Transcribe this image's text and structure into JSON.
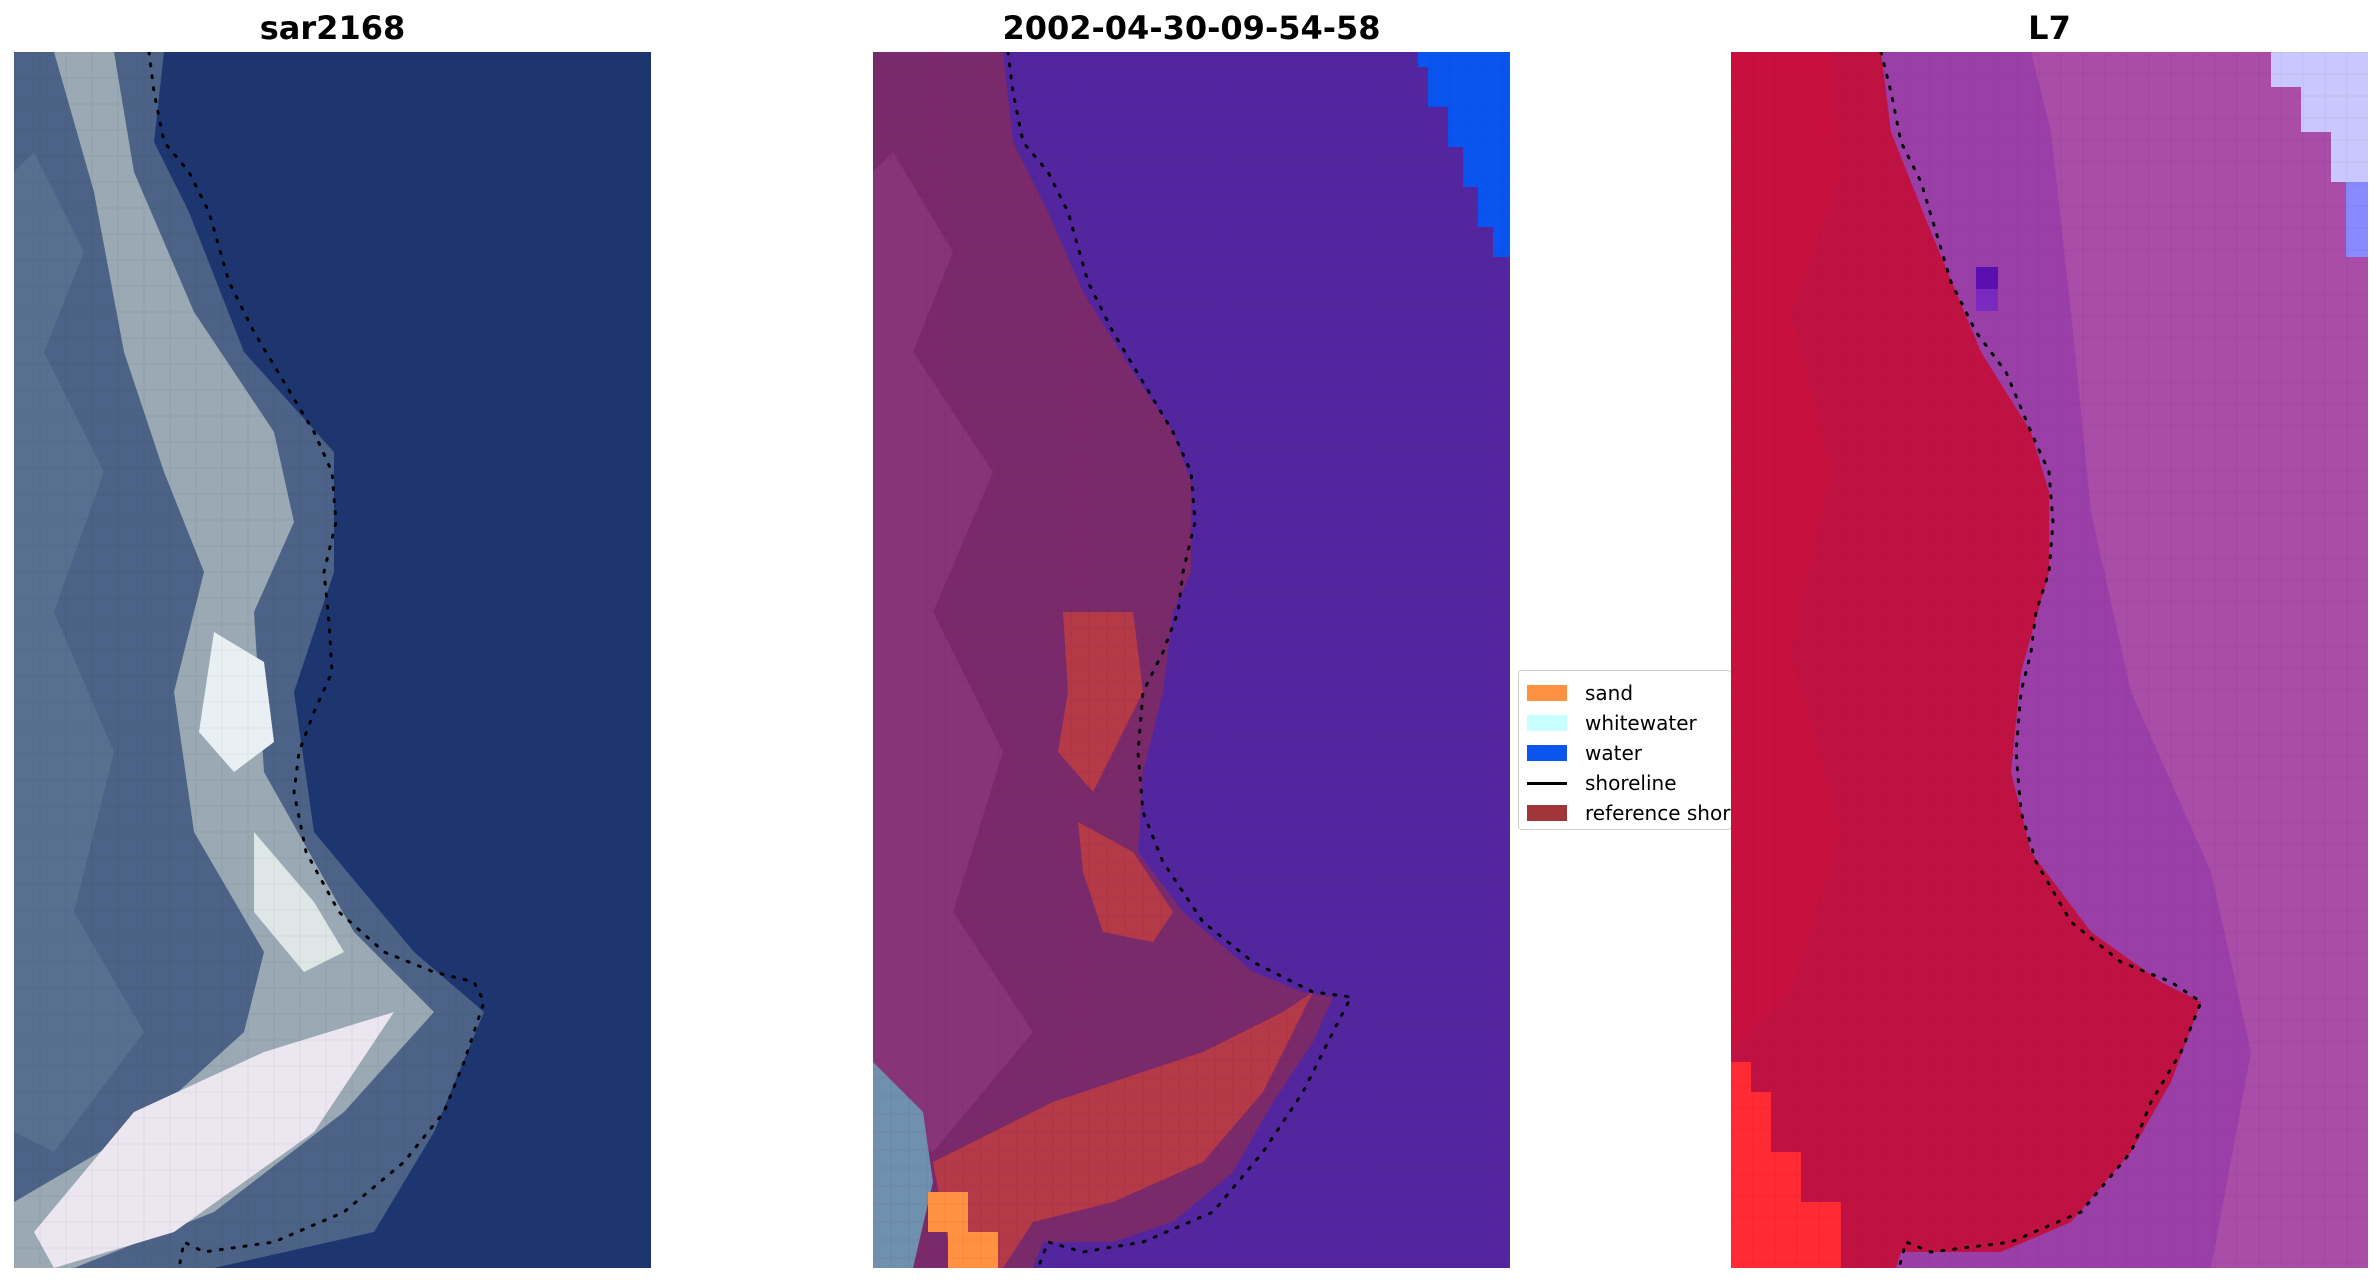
{
  "panels": [
    {
      "title": "sar2168"
    },
    {
      "title": "2002-04-30-09-54-58"
    },
    {
      "title": "L7"
    }
  ],
  "legend": {
    "items": [
      {
        "label": "sand",
        "color": "#ff9141",
        "kind": "patch"
      },
      {
        "label": "whitewater",
        "color": "#c8ffff",
        "kind": "patch"
      },
      {
        "label": "water",
        "color": "#0a55f0",
        "kind": "patch"
      },
      {
        "label": "shoreline",
        "color": "#000000",
        "kind": "line"
      },
      {
        "label": "reference shoreline",
        "color": "#a0353a",
        "kind": "patch"
      }
    ]
  }
}
